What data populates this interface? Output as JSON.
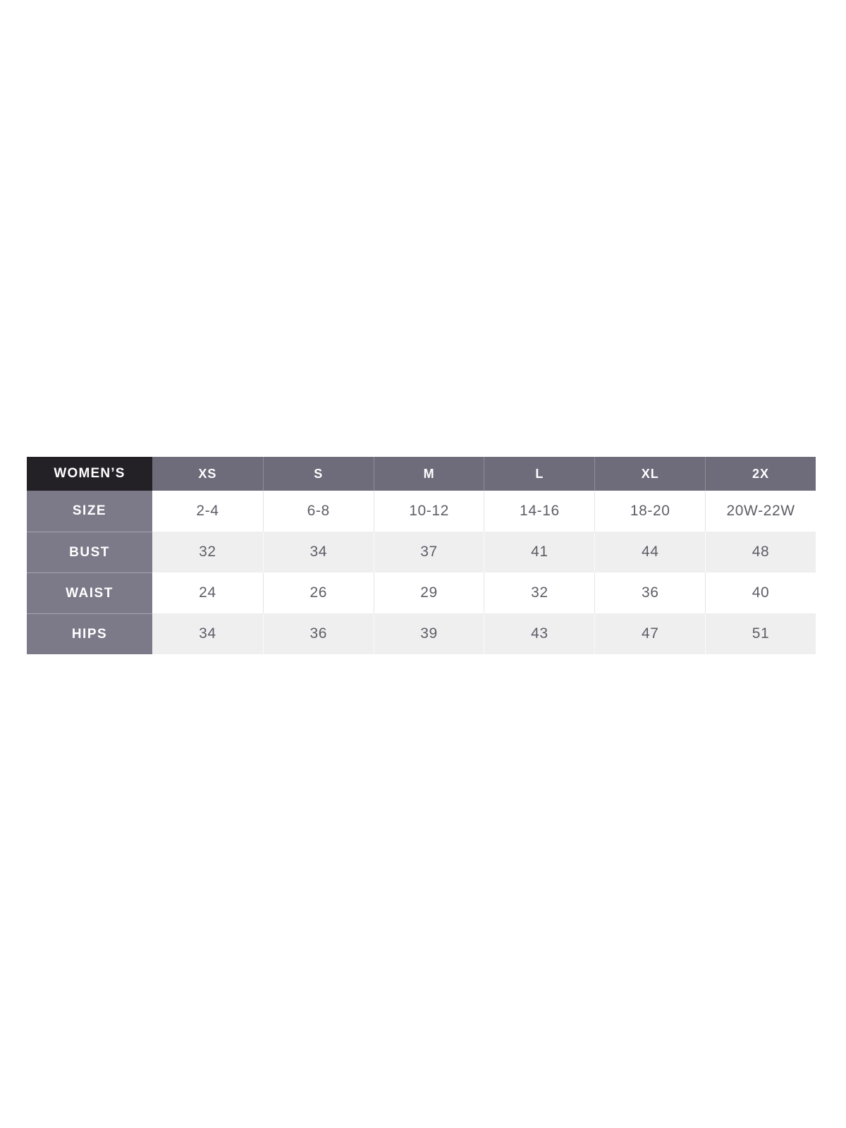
{
  "chart_data": {
    "type": "table",
    "title": "WOMEN'S",
    "corner_label": "WOMEN’S",
    "columns": [
      "XS",
      "S",
      "M",
      "L",
      "XL",
      "2X"
    ],
    "rows": [
      {
        "label": "SIZE",
        "values": [
          "2-4",
          "6-8",
          "10-12",
          "14-16",
          "18-20",
          "20W-22W"
        ]
      },
      {
        "label": "BUST",
        "values": [
          "32",
          "34",
          "37",
          "41",
          "44",
          "48"
        ]
      },
      {
        "label": "WAIST",
        "values": [
          "24",
          "26",
          "29",
          "32",
          "36",
          "40"
        ]
      },
      {
        "label": "HIPS",
        "values": [
          "34",
          "36",
          "39",
          "43",
          "47",
          "51"
        ]
      }
    ],
    "layout_hints": {
      "corner_bg": "#232026",
      "header_bg": "#6e6b7a",
      "row_label_bg": "#7c7988",
      "row_bg_white": "#ffffff",
      "row_bg_alt": "#efeff0",
      "header_text_color": "#ffffff",
      "data_text_color": "#5f5c66",
      "page_bg": "#ffffff"
    }
  }
}
